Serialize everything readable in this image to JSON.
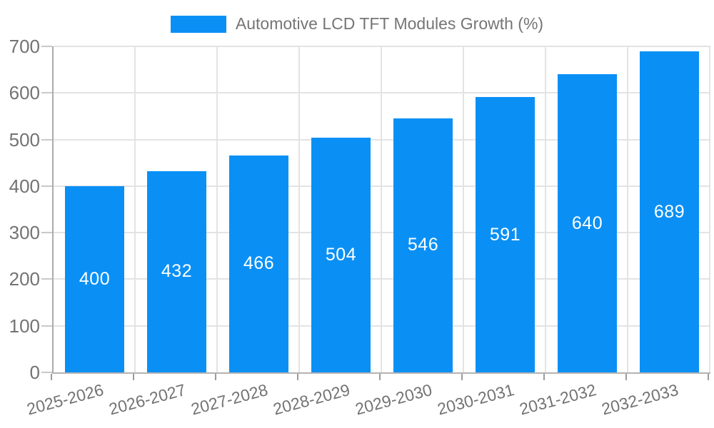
{
  "chart_data": {
    "type": "bar",
    "title": "",
    "legend": {
      "label": "Automotive LCD TFT Modules Growth (%)",
      "position": "top-center"
    },
    "categories": [
      "2025-2026",
      "2026-2027",
      "2027-2028",
      "2028-2029",
      "2029-2030",
      "2030-2031",
      "2031-2032",
      "2032-2033"
    ],
    "series": [
      {
        "name": "Automotive LCD TFT Modules Growth (%)",
        "values": [
          400,
          432,
          466,
          504,
          546,
          591,
          640,
          689
        ]
      }
    ],
    "value_labels": [
      "400",
      "432",
      "466",
      "504",
      "546",
      "591",
      "640",
      "689"
    ],
    "xlabel": "",
    "ylabel": "",
    "ylim": [
      0,
      700
    ],
    "yticks": [
      0,
      100,
      200,
      300,
      400,
      500,
      600,
      700
    ],
    "grid": "horizontal lines at each ytick, vertical lines at category boundaries",
    "x_tick_rotation_deg": -15,
    "colors": {
      "bar": "#0A90F5",
      "value_label": "#FFFFFF",
      "tick_text": "#737373",
      "legend_text": "#757575",
      "grid": "#E3E3E3",
      "axis": "#ABABAB",
      "minor_tick": "#C9C9C9",
      "boundary_tick": "#9B9B9B",
      "background": "#FFFFFF"
    }
  }
}
